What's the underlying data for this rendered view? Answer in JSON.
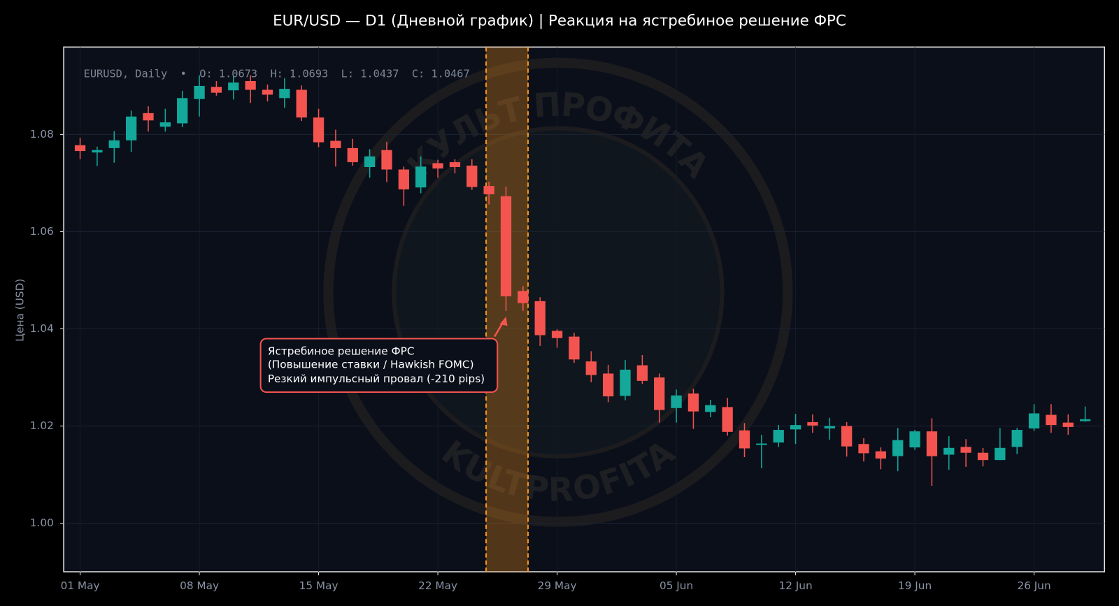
{
  "chart_data": {
    "type": "candlestick",
    "title": "EUR/USD — D1 (Дневной график) | Реакция на ястребиное решение ФРС",
    "y_label": "Цена (USD)",
    "info_text": "EURUSD, Daily  •  O: 1.0673  H: 1.0693  L: 1.0437  C: 1.0467",
    "annotation": [
      "Ястребиное решение ФРС",
      "(Повышение ставки / Hawkish FOMC)",
      "Резкий импульсный провал (-210 pips)"
    ],
    "watermark": [
      "КУЛЬТ ПРОФИТА",
      "KULTPROFITA"
    ],
    "categories": [
      "01 May",
      null,
      null,
      null,
      null,
      null,
      null,
      "08 May",
      null,
      null,
      null,
      null,
      null,
      null,
      "15 May",
      null,
      null,
      null,
      null,
      null,
      null,
      "22 May",
      null,
      null,
      null,
      null,
      null,
      null,
      "29 May",
      null,
      null,
      null,
      null,
      null,
      null,
      "05 Jun",
      null,
      null,
      null,
      null,
      null,
      null,
      "12 Jun",
      null,
      null,
      null,
      null,
      null,
      null,
      "19 Jun",
      null,
      null,
      null,
      null,
      null,
      null,
      "26 Jun",
      null,
      null,
      null
    ],
    "open": [
      1.0778,
      1.0763,
      1.0772,
      1.0788,
      1.0844,
      1.0816,
      1.0823,
      1.0873,
      1.0898,
      1.0891,
      1.091,
      1.0892,
      1.0875,
      1.0892,
      1.0835,
      1.0787,
      1.0772,
      1.0733,
      1.0768,
      1.0728,
      1.0691,
      1.0741,
      1.0743,
      1.0736,
      1.0694,
      1.0673,
      1.0478,
      1.0457,
      1.0396,
      1.0384,
      1.0333,
      1.0308,
      1.0262,
      1.0325,
      1.03,
      1.0237,
      1.0267,
      1.0229,
      1.0239,
      1.0191,
      1.0161,
      1.0166,
      1.0193,
      1.0208,
      1.0195,
      1.02,
      1.0163,
      1.0148,
      1.0138,
      1.0156,
      1.0189,
      1.0141,
      1.0157,
      1.0145,
      1.013,
      1.0157,
      1.0195,
      1.0223,
      1.0207,
      1.021
    ],
    "high": [
      1.0793,
      1.0775,
      1.0807,
      1.0849,
      1.0858,
      1.0853,
      1.089,
      1.0922,
      1.091,
      1.092,
      1.0922,
      1.0903,
      1.0916,
      1.0901,
      1.0853,
      1.081,
      1.0791,
      1.077,
      1.0785,
      1.0734,
      1.0755,
      1.0748,
      1.0749,
      1.0749,
      1.0703,
      1.0693,
      1.0488,
      1.0465,
      1.0399,
      1.0392,
      1.0354,
      1.0326,
      1.0336,
      1.0346,
      1.0308,
      1.0275,
      1.0277,
      1.0254,
      1.0258,
      1.0206,
      1.0182,
      1.0202,
      1.0225,
      1.0224,
      1.0217,
      1.0208,
      1.0175,
      1.0156,
      1.0196,
      1.0192,
      1.0216,
      1.0179,
      1.0173,
      1.0155,
      1.0196,
      1.0196,
      1.0245,
      1.0245,
      1.0224,
      1.024
    ],
    "low": [
      1.0749,
      1.0735,
      1.0742,
      1.0764,
      1.0806,
      1.0806,
      1.0815,
      1.0837,
      1.088,
      1.0872,
      1.0865,
      1.0868,
      1.0855,
      1.0828,
      1.0774,
      1.0734,
      1.0736,
      1.0711,
      1.0702,
      1.0653,
      1.0679,
      1.0711,
      1.072,
      1.0686,
      1.0656,
      1.0437,
      1.0437,
      1.0365,
      1.0361,
      1.033,
      1.029,
      1.0249,
      1.0253,
      1.0287,
      1.0207,
      1.0207,
      1.0194,
      1.0218,
      1.018,
      1.0136,
      1.0113,
      1.0157,
      1.0163,
      1.0186,
      1.0172,
      1.0137,
      1.0127,
      1.0111,
      1.0107,
      1.0151,
      1.0077,
      1.011,
      1.0116,
      1.0117,
      1.013,
      1.0142,
      1.019,
      1.0186,
      1.0182,
      1.0209
    ],
    "close": [
      1.0766,
      1.0768,
      1.0788,
      1.0837,
      1.0829,
      1.0825,
      1.0875,
      1.09,
      1.0886,
      1.0907,
      1.0892,
      1.0882,
      1.0894,
      1.0835,
      1.0784,
      1.0772,
      1.0743,
      1.0755,
      1.0728,
      1.0687,
      1.0734,
      1.073,
      1.0733,
      1.0692,
      1.0677,
      1.0467,
      1.0453,
      1.0387,
      1.0381,
      1.0337,
      1.0305,
      1.0261,
      1.0316,
      1.0293,
      1.0233,
      1.0263,
      1.023,
      1.0243,
      1.0188,
      1.0154,
      1.0164,
      1.0192,
      1.0202,
      1.0201,
      1.02,
      1.0158,
      1.0144,
      1.0133,
      1.0171,
      1.0189,
      1.0138,
      1.0155,
      1.0145,
      1.013,
      1.0155,
      1.0192,
      1.0226,
      1.0202,
      1.0198,
      1.0214
    ],
    "up_color": "#13a89a",
    "down_color": "#f4544f",
    "ylim": [
      0.99,
      1.098
    ],
    "yticks": [
      {
        "value": 1,
        "label": "1.00"
      },
      1.02,
      1.04,
      1.06,
      1.08
    ],
    "grid": true,
    "highlight": {
      "from": 24,
      "to": 26,
      "color": "#f7931a"
    }
  }
}
